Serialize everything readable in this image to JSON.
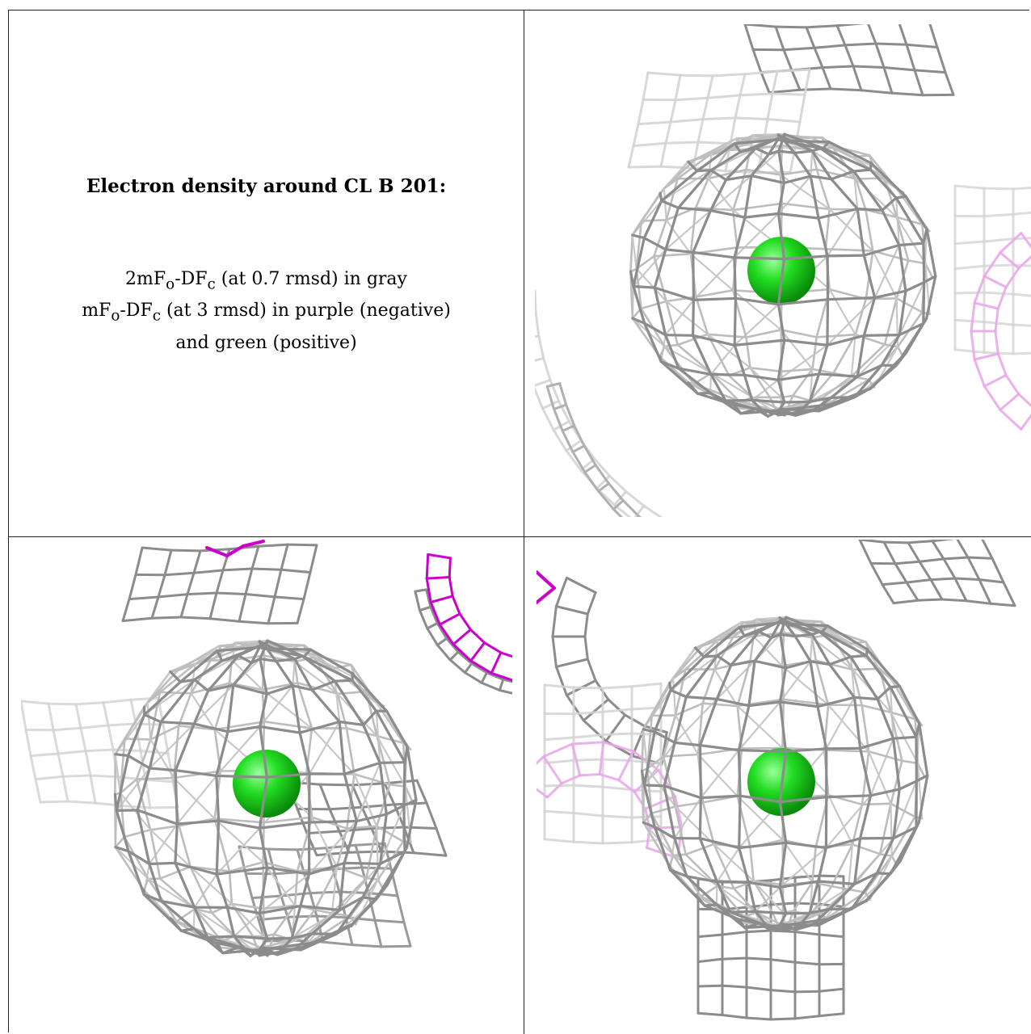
{
  "caption": {
    "title": "Electron density around CL B 201:",
    "line1": {
      "main": "2mF",
      "sub1": "o",
      "mid": "-DF",
      "sub2": "c",
      "rest": " (at 0.7 rmsd) in gray"
    },
    "line2": {
      "main": "mF",
      "sub1": "o",
      "mid": "-DF",
      "sub2": "c",
      "rest": " (at 3 rmsd) in purple (negative)"
    },
    "line3": "and green (positive)"
  },
  "colors": {
    "gray_mesh": "#8c8c8c",
    "light_mesh": "#d4d4d4",
    "purple_mesh": "#cc00cc",
    "light_purple_mesh": "#e8a8e8",
    "green_sphere": "#22dd22"
  },
  "panels": [
    {
      "view": "top-right"
    },
    {
      "view": "bottom-left"
    },
    {
      "view": "bottom-right"
    }
  ]
}
